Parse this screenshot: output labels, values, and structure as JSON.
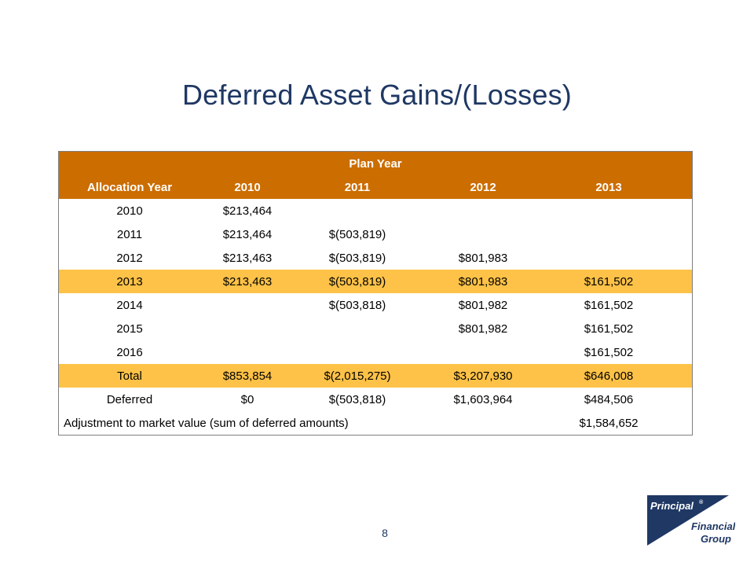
{
  "title": "Deferred Asset Gains/(Losses)",
  "table": {
    "group_header": "Plan Year",
    "columns": [
      "Allocation Year",
      "2010",
      "2011",
      "2012",
      "2013"
    ],
    "rows": [
      {
        "cells": [
          "2010",
          "$213,464",
          "",
          "",
          ""
        ],
        "highlight": false
      },
      {
        "cells": [
          "2011",
          "$213,464",
          "$(503,819)",
          "",
          ""
        ],
        "highlight": false
      },
      {
        "cells": [
          "2012",
          "$213,463",
          "$(503,819)",
          "$801,983",
          ""
        ],
        "highlight": false
      },
      {
        "cells": [
          "2013",
          "$213,463",
          "$(503,819)",
          "$801,983",
          "$161,502"
        ],
        "highlight": true
      },
      {
        "cells": [
          "2014",
          "",
          "$(503,818)",
          "$801,982",
          "$161,502"
        ],
        "highlight": false
      },
      {
        "cells": [
          "2015",
          "",
          "",
          "$801,982",
          "$161,502"
        ],
        "highlight": false
      },
      {
        "cells": [
          "2016",
          "",
          "",
          "",
          "$161,502"
        ],
        "highlight": false
      },
      {
        "cells": [
          "Total",
          "$853,854",
          "$(2,015,275)",
          "$3,207,930",
          "$646,008"
        ],
        "highlight": true
      },
      {
        "cells": [
          "Deferred",
          "$0",
          "$(503,818)",
          "$1,603,964",
          "$484,506"
        ],
        "highlight": false
      }
    ],
    "adjustment": {
      "label": "Adjustment to market value (sum of deferred amounts)",
      "value": "$1,584,652"
    }
  },
  "page_number": "8",
  "logo": {
    "line1": "Principal",
    "registered": "®",
    "line2": "Financial",
    "line3": "Group",
    "color": "#1f3864"
  },
  "colors": {
    "header_bg": "#cc6d00",
    "highlight_bg": "#fdc247",
    "title": "#1f3864"
  }
}
